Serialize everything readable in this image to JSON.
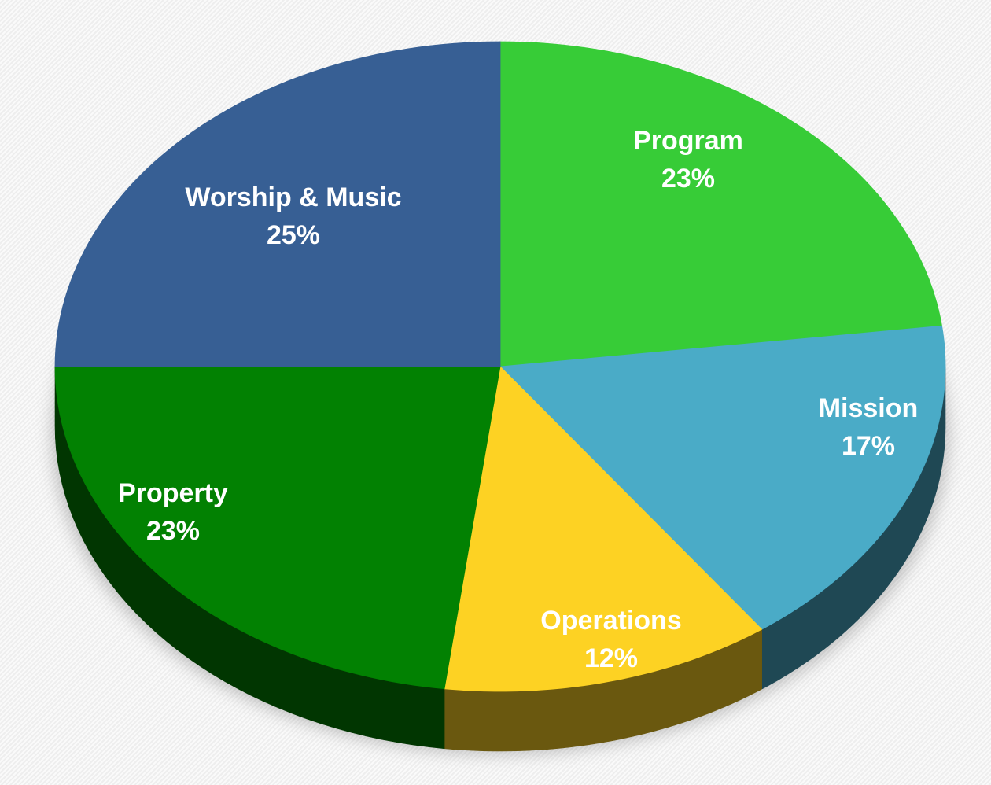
{
  "chart_data": {
    "type": "pie",
    "title": "",
    "style": "3d",
    "start": "top, clockwise",
    "slices": [
      {
        "label": "Program",
        "value": 23,
        "value_label": "23%",
        "color": "#37cc37"
      },
      {
        "label": "Mission",
        "value": 17,
        "value_label": "17%",
        "color": "#4aabc7"
      },
      {
        "label": "Operations",
        "value": 12,
        "value_label": "12%",
        "color": "#fdd223"
      },
      {
        "label": "Property",
        "value": 23,
        "value_label": "23%",
        "color": "#028102"
      },
      {
        "label": "Worship & Music",
        "value": 25,
        "value_label": "25%",
        "color": "#375f94"
      }
    ]
  }
}
